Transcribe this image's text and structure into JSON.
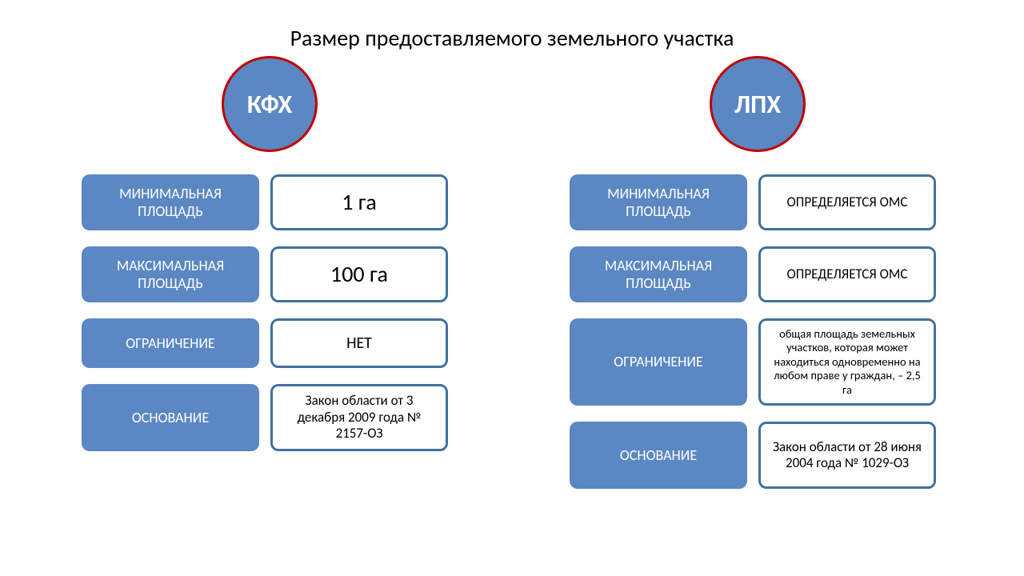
{
  "title": "Размер предоставляемого земельного участка",
  "colors": {
    "circle_fill": "#5b87c3",
    "circle_border": "#c00000",
    "label_fill": "#5b87c3",
    "value_border": "#41719c",
    "text_on_blue": "#ffffff",
    "text_black": "#000000",
    "background": "#ffffff"
  },
  "columns": [
    {
      "badge": "КФХ",
      "rows": [
        {
          "label": "МИНИМАЛЬНАЯ ПЛОЩАДЬ",
          "value": "1 га",
          "label_h": 70,
          "value_fs": "fs-large"
        },
        {
          "label": "МАКСИМАЛЬНАЯ ПЛОЩАДЬ",
          "value": "100 га",
          "label_h": 70,
          "value_fs": "fs-large"
        },
        {
          "label": "ОГРАНИЧЕНИЕ",
          "value": "НЕТ",
          "label_h": 62,
          "value_fs": "fs-med"
        },
        {
          "label": "ОСНОВАНИЕ",
          "value": "Закон области от 3 декабря 2009 года № 2157-ОЗ",
          "label_h": 84,
          "value_fs": "fs-small"
        }
      ]
    },
    {
      "badge": "ЛПХ",
      "rows": [
        {
          "label": "МИНИМАЛЬНАЯ ПЛОЩАДЬ",
          "value": "ОПРЕДЕЛЯЕТСЯ  ОМС",
          "label_h": 70,
          "value_fs": "fs-small"
        },
        {
          "label": "МАКСИМАЛЬНАЯ ПЛОЩАДЬ",
          "value": "ОПРЕДЕЛЯЕТСЯ  ОМС",
          "label_h": 70,
          "value_fs": "fs-small"
        },
        {
          "label": "ОГРАНИЧЕНИЕ",
          "value": "общая площадь земельных участков, которая может находиться одновременно на любом праве у граждан, – 2,5 га",
          "label_h": 62,
          "value_fs": "fs-xs"
        },
        {
          "label": "ОСНОВАНИЕ",
          "value": "Закон области от 28 июня 2004 года № 1029-ОЗ",
          "label_h": 84,
          "value_fs": "fs-small"
        }
      ]
    }
  ]
}
